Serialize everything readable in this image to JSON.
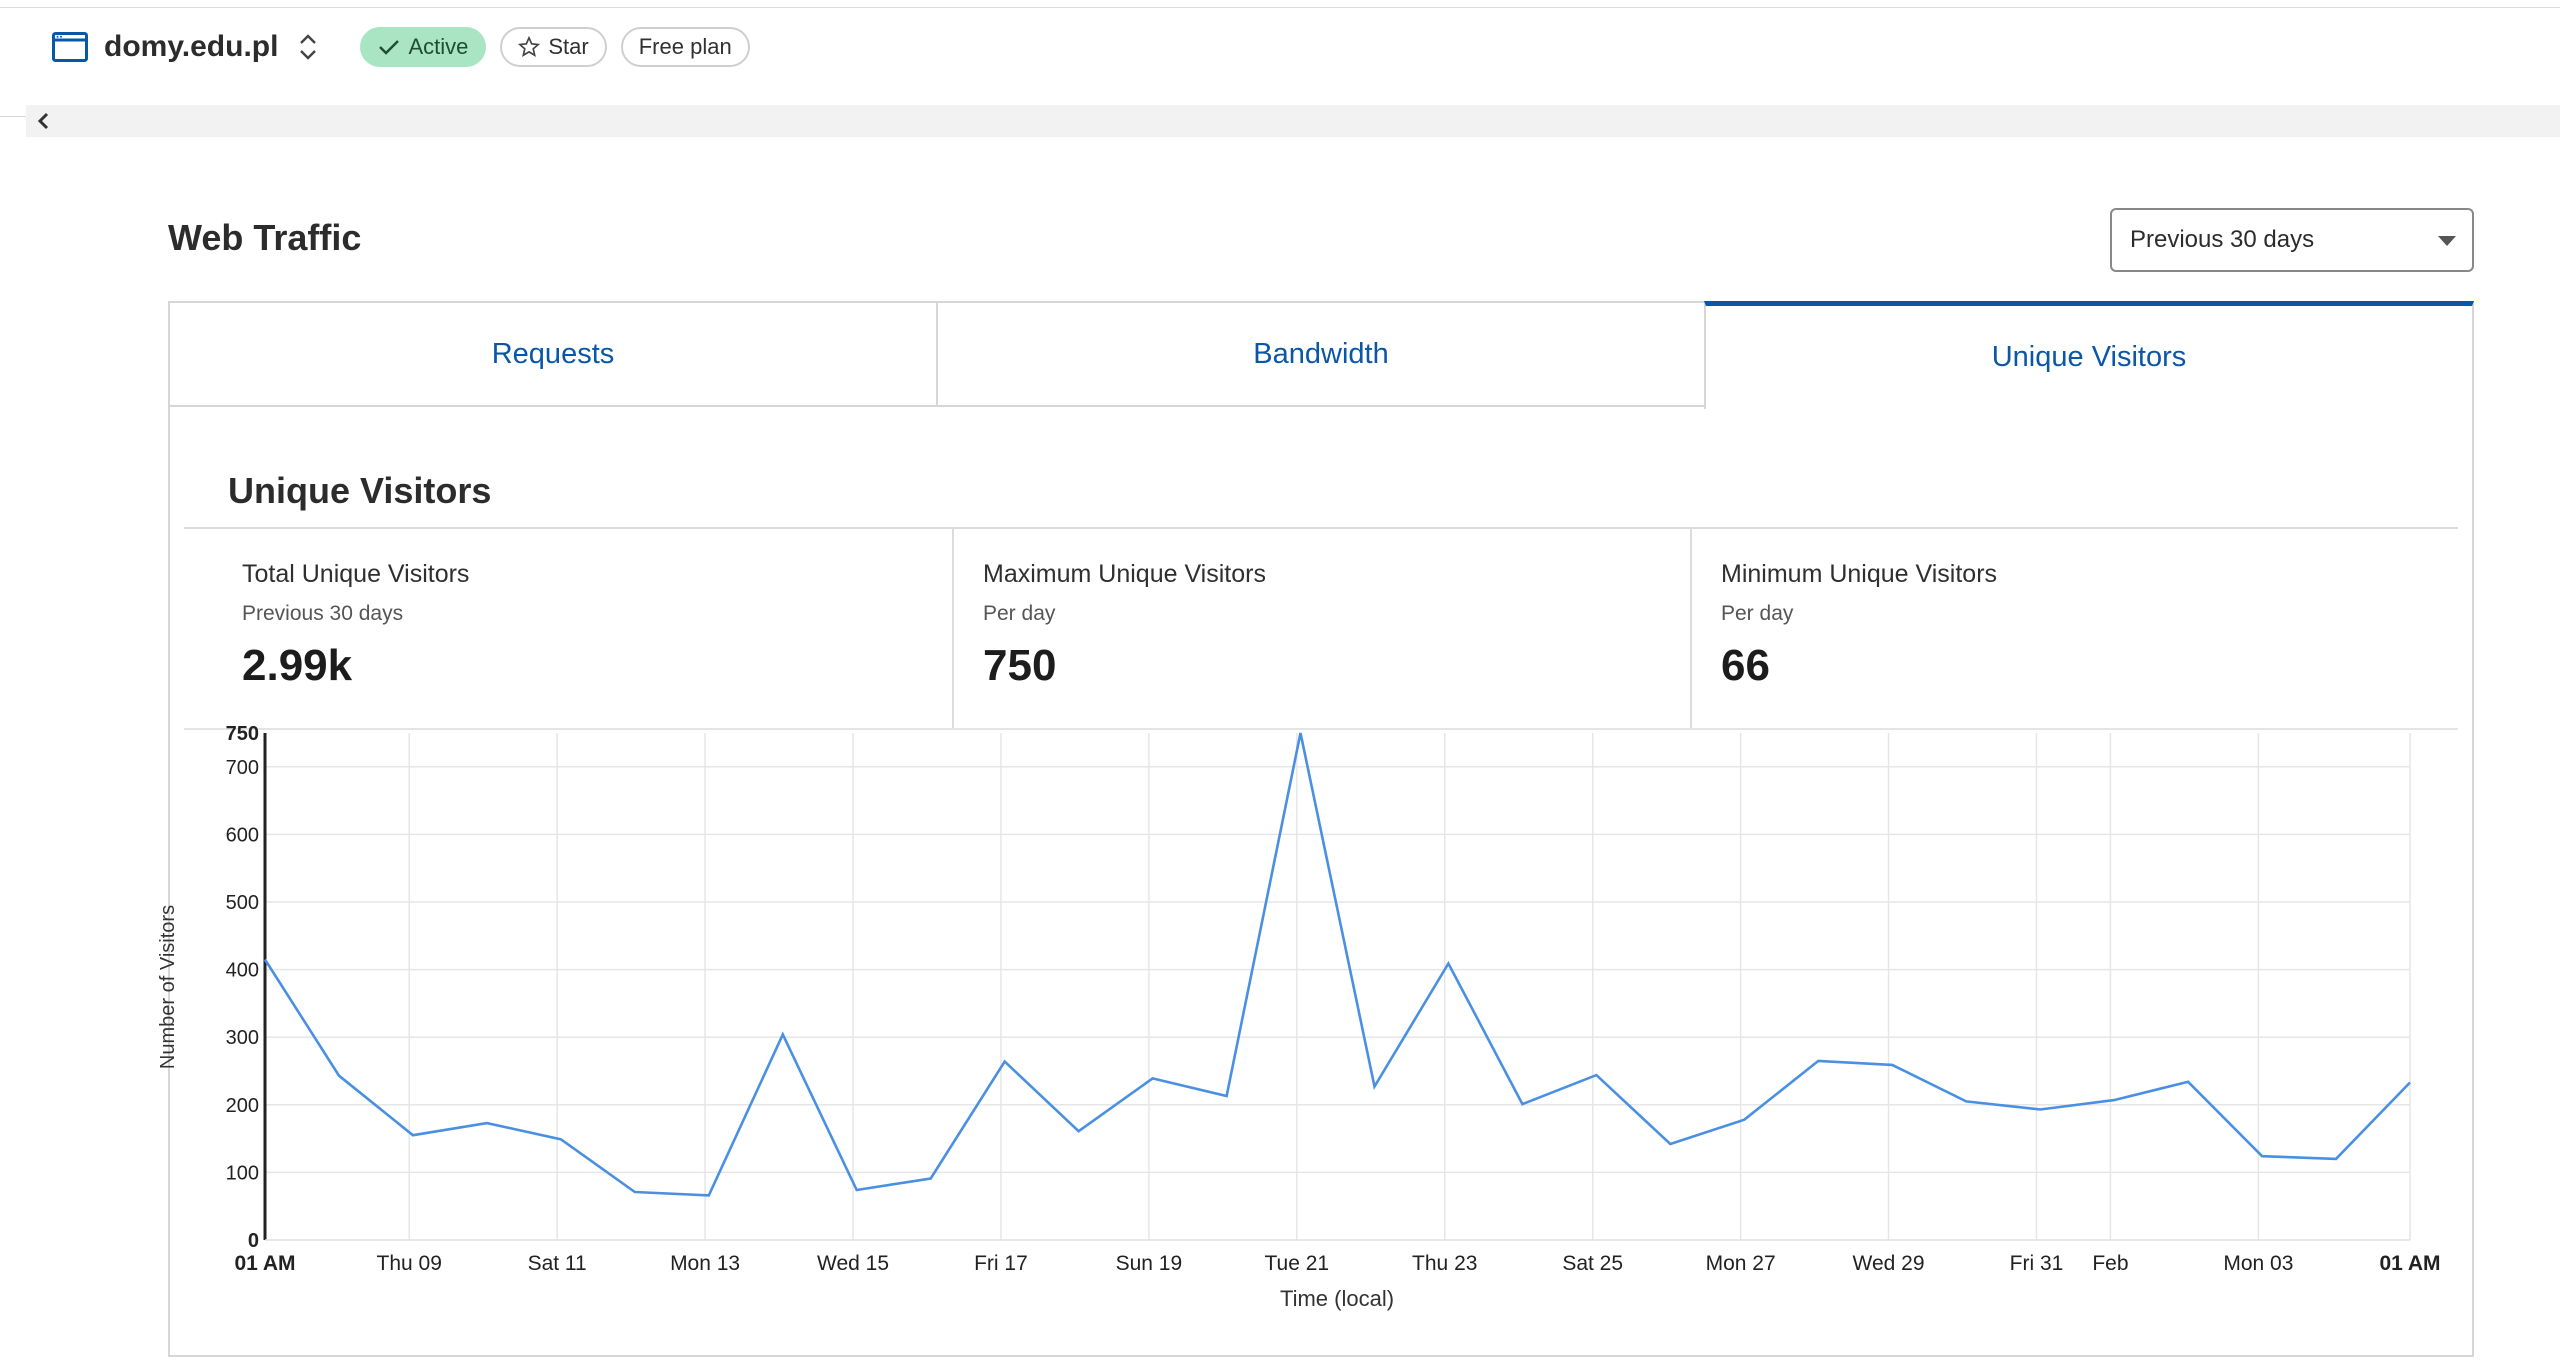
{
  "header": {
    "site_name": "domy.edu.pl",
    "status_badge": "Active",
    "star_label": "Star",
    "plan_badge": "Free plan"
  },
  "page": {
    "title": "Web Traffic",
    "range_select": "Previous 30 days"
  },
  "tabs": [
    {
      "label": "Requests",
      "selected": false
    },
    {
      "label": "Bandwidth",
      "selected": false
    },
    {
      "label": "Unique Visitors",
      "selected": true
    }
  ],
  "panel": {
    "title": "Unique Visitors",
    "stats": [
      {
        "label": "Total Unique Visitors",
        "sub": "Previous 30 days",
        "value": "2.99k"
      },
      {
        "label": "Maximum Unique Visitors",
        "sub": "Per day",
        "value": "750"
      },
      {
        "label": "Minimum Unique Visitors",
        "sub": "Per day",
        "value": "66"
      }
    ]
  },
  "colors": {
    "accent": "#0a57a8",
    "active_badge_bg": "#a9e5c3",
    "line": "#4a90e2"
  },
  "chart_data": {
    "type": "line",
    "xlabel": "Time (local)",
    "ylabel": "Number of Visitors",
    "ylim": [
      0,
      750
    ],
    "yticks": [
      0,
      100,
      200,
      300,
      400,
      500,
      600,
      700,
      750
    ],
    "grid": true,
    "x_tick_labels": [
      "01 AM",
      "Thu 09",
      "Sat 11",
      "Mon 13",
      "Wed 15",
      "Fri 17",
      "Sun 19",
      "Tue 21",
      "Thu 23",
      "Sat 25",
      "Mon 27",
      "Wed 29",
      "Fri 31",
      "Feb",
      "Mon 03",
      "01 AM"
    ],
    "x_tick_positions": [
      0,
      1.95,
      3.95,
      5.95,
      7.95,
      9.95,
      11.95,
      13.95,
      15.95,
      17.95,
      19.95,
      21.95,
      23.95,
      24.95,
      26.95,
      29
    ],
    "bold_ticks": [
      0,
      15
    ],
    "series": [
      {
        "values": [
          415,
          243,
          155,
          173,
          149,
          71,
          66,
          304,
          74,
          91,
          264,
          161,
          239,
          213,
          750,
          227,
          409,
          201,
          244,
          142,
          178,
          265,
          259,
          205,
          193,
          207,
          234,
          124,
          120,
          233
        ]
      }
    ]
  }
}
